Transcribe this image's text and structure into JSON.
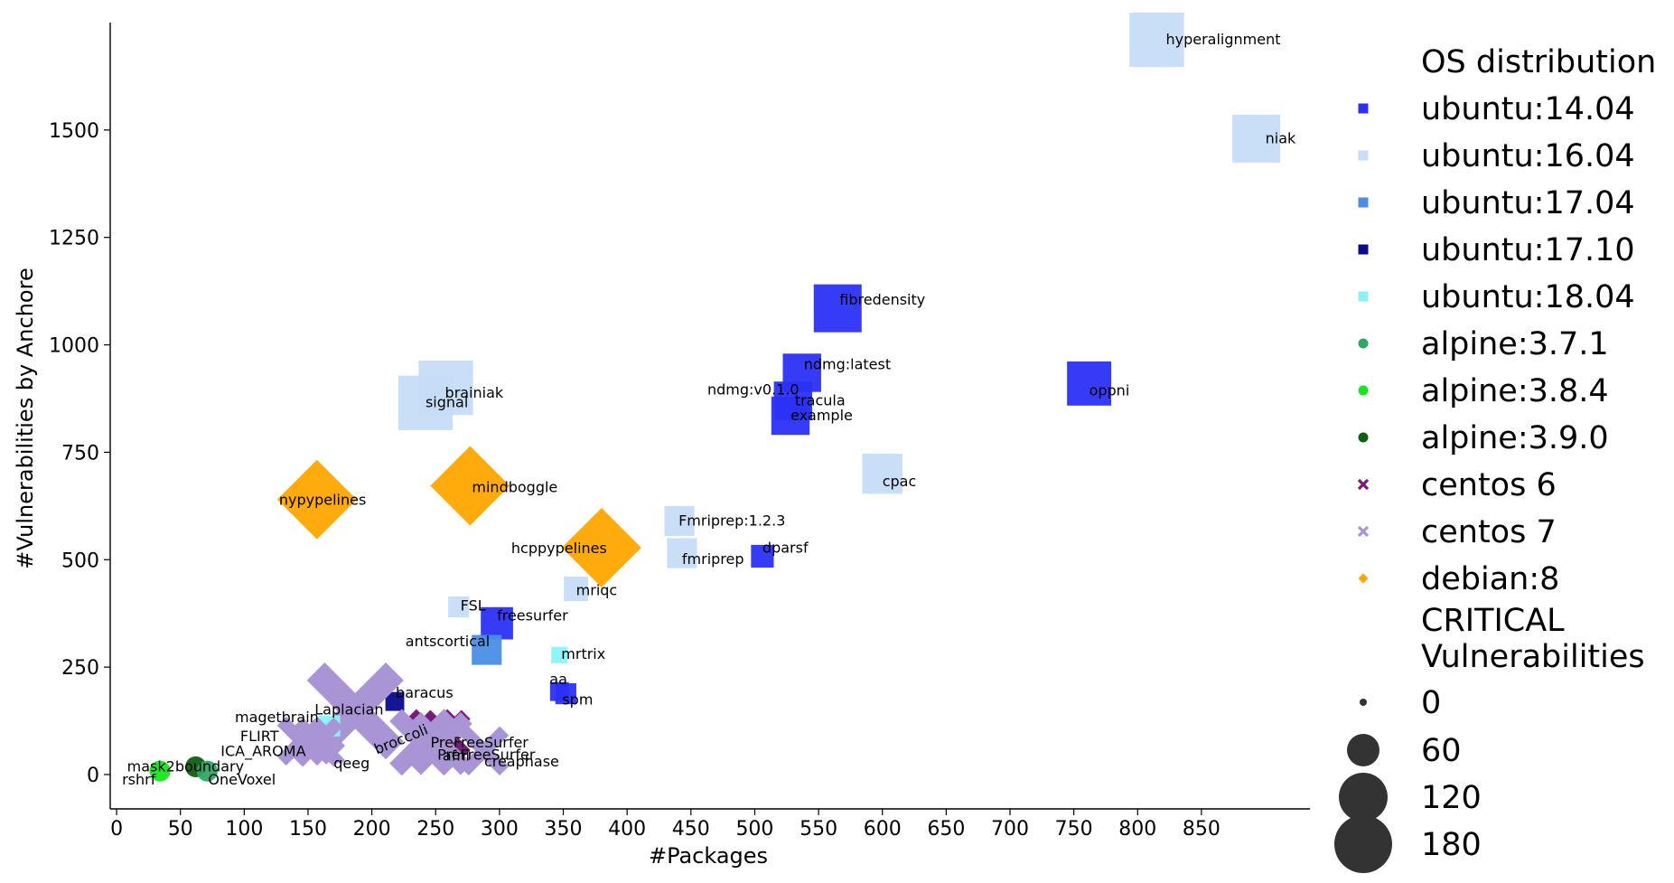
{
  "chart_data": {
    "type": "scatter",
    "xlabel": "#Packages",
    "ylabel": "#Vulnerabilities by Anchore",
    "xlim": [
      -5,
      935
    ],
    "ylim": [
      -80,
      1750
    ],
    "xticks": [
      0,
      50,
      100,
      150,
      200,
      250,
      300,
      350,
      400,
      450,
      500,
      550,
      600,
      650,
      700,
      750,
      800,
      850
    ],
    "yticks": [
      0,
      250,
      500,
      750,
      1000,
      1250,
      1500
    ],
    "legend": {
      "title": "OS distribution",
      "size_title": "CRITICAL Vulnerabilities",
      "size_entries": [
        "0",
        "60",
        "120",
        "180"
      ],
      "size_values": [
        0,
        60,
        120,
        180
      ],
      "placement": "right"
    },
    "series": [
      {
        "name": "ubuntu:14.04",
        "color": "#2b31f5",
        "marker": "square"
      },
      {
        "name": "ubuntu:16.04",
        "color": "#c6dcf7",
        "marker": "square"
      },
      {
        "name": "ubuntu:17.04",
        "color": "#4a8ee6",
        "marker": "square"
      },
      {
        "name": "ubuntu:17.10",
        "color": "#0a0a8c",
        "marker": "square"
      },
      {
        "name": "ubuntu:18.04",
        "color": "#8af3f8",
        "marker": "square"
      },
      {
        "name": "alpine:3.7.1",
        "color": "#2fa866",
        "marker": "circle"
      },
      {
        "name": "alpine:3.8.4",
        "color": "#18e61f",
        "marker": "circle"
      },
      {
        "name": "alpine:3.9.0",
        "color": "#0e5f12",
        "marker": "circle"
      },
      {
        "name": "centos 6",
        "color": "#7b1a78",
        "marker": "x"
      },
      {
        "name": "centos 7",
        "color": "#a995d6",
        "marker": "x"
      },
      {
        "name": "debian:8",
        "color": "#ffa500",
        "marker": "diamond"
      }
    ],
    "points": [
      {
        "label": "hyperalignment",
        "x": 815,
        "y": 1710,
        "critical": 40,
        "os": 1
      },
      {
        "label": "niak",
        "x": 893,
        "y": 1480,
        "critical": 30,
        "os": 1
      },
      {
        "label": "fibredensity",
        "x": 565,
        "y": 1085,
        "critical": 30,
        "os": 0
      },
      {
        "label": "ndmg:latest",
        "x": 537,
        "y": 935,
        "critical": 18,
        "os": 0
      },
      {
        "label": "ndmg:v0.1.0",
        "x": 528,
        "y": 895,
        "critical": 0,
        "os": 0
      },
      {
        "label": "tracula",
        "x": 530,
        "y": 870,
        "critical": 18,
        "os": 0
      },
      {
        "label": "example",
        "x": 528,
        "y": 835,
        "critical": 18,
        "os": 0
      },
      {
        "label": "oppni",
        "x": 762,
        "y": 910,
        "critical": 25,
        "os": 0
      },
      {
        "label": "brainiak",
        "x": 258,
        "y": 900,
        "critical": 40,
        "os": 1
      },
      {
        "label": "signal",
        "x": 242,
        "y": 865,
        "critical": 40,
        "os": 1
      },
      {
        "label": "cpac",
        "x": 600,
        "y": 700,
        "critical": 20,
        "os": 1
      },
      {
        "label": "nypypelines",
        "x": 157,
        "y": 640,
        "critical": 180,
        "os": 10
      },
      {
        "label": "mindboggle",
        "x": 277,
        "y": 672,
        "critical": 180,
        "os": 10
      },
      {
        "label": "hcppypelines",
        "x": 380,
        "y": 528,
        "critical": 80,
        "os": 10
      },
      {
        "label": "Fmriprep:1.2.3",
        "x": 441,
        "y": 590,
        "critical": 10,
        "os": 1
      },
      {
        "label": "fmriprep",
        "x": 443,
        "y": 515,
        "critical": 10,
        "os": 1
      },
      {
        "label": "dparsf",
        "x": 506,
        "y": 508,
        "critical": 5,
        "os": 0
      },
      {
        "label": "mriqc",
        "x": 360,
        "y": 432,
        "critical": 6,
        "os": 1
      },
      {
        "label": "FSL",
        "x": 268,
        "y": 390,
        "critical": 4,
        "os": 1
      },
      {
        "label": "freesurfer",
        "x": 298,
        "y": 352,
        "critical": 12,
        "os": 0
      },
      {
        "label": "antscortical",
        "x": 290,
        "y": 290,
        "critical": 10,
        "os": 2
      },
      {
        "label": "mrtrix",
        "x": 347,
        "y": 278,
        "critical": 2,
        "os": 4
      },
      {
        "label": "aa",
        "x": 347,
        "y": 193,
        "critical": 3,
        "os": 0
      },
      {
        "label": "spm",
        "x": 352,
        "y": 188,
        "critical": 4,
        "os": 0
      },
      {
        "label": "baracus",
        "x": 218,
        "y": 170,
        "critical": 3,
        "os": 3
      },
      {
        "label": "Laplacian",
        "x": 187,
        "y": 148,
        "critical": 90,
        "os": 9
      },
      {
        "label": "magetbrain",
        "x": 167,
        "y": 113,
        "critical": 4,
        "os": 4
      },
      {
        "label": "broccoli",
        "x": 247,
        "y": 95,
        "critical": 20,
        "os": 8
      },
      {
        "label": "PreFreeSurfer",
        "x": 258,
        "y": 93,
        "critical": 20,
        "os": 8
      },
      {
        "label": "FLIRT",
        "x": 145,
        "y": 78,
        "critical": 20,
        "os": 9
      },
      {
        "label": "ICA_AROMA",
        "x": 158,
        "y": 75,
        "critical": 20,
        "os": 9
      },
      {
        "label": "PreFreeSurfer",
        "x": 240,
        "y": 75,
        "critical": 40,
        "os": 9
      },
      {
        "label": "afni",
        "x": 254,
        "y": 72,
        "critical": 35,
        "os": 9
      },
      {
        "label": "creaphase",
        "x": 288,
        "y": 55,
        "critical": 20,
        "os": 9
      },
      {
        "label": "qeeg",
        "x": 170,
        "y": 50,
        "critical": 3,
        "os": 9
      },
      {
        "label": "mask2boundary",
        "x": 62,
        "y": 18,
        "critical": 4,
        "os": 7
      },
      {
        "label": "OneVoxel",
        "x": 71,
        "y": 8,
        "critical": 4,
        "os": 5
      },
      {
        "label": "rshrf",
        "x": 34,
        "y": 8,
        "critical": 4,
        "os": 6
      }
    ]
  },
  "label_layout": [
    {
      "dx": 10,
      "dy": 5
    },
    {
      "dx": 10,
      "dy": 5
    },
    {
      "dx": 2,
      "dy": -4
    },
    {
      "dx": 2,
      "dy": -4
    },
    {
      "dx": -92,
      "dy": 5
    },
    {
      "dx": 2,
      "dy": 5
    },
    {
      "dx": 0,
      "dy": 5
    },
    {
      "dx": 0,
      "dy": 13
    },
    {
      "dx": -1,
      "dy": 11
    },
    {
      "dx": 0,
      "dy": 5
    },
    {
      "dx": 0,
      "dy": 14
    },
    {
      "dx": -42,
      "dy": 6
    },
    {
      "dx": 2,
      "dy": 7
    },
    {
      "dx": -100,
      "dy": 6
    },
    {
      "dx": -1,
      "dy": 5
    },
    {
      "dx": 0,
      "dy": 12
    },
    {
      "dx": 0,
      "dy": -4
    },
    {
      "dx": 0,
      "dy": 7
    },
    {
      "dx": 2,
      "dy": 4
    },
    {
      "dx": 0,
      "dy": -3
    },
    {
      "dx": -90,
      "dy": -4
    },
    {
      "dx": 2,
      "dy": 4
    },
    {
      "dx": -11,
      "dy": -8
    },
    {
      "dx": -4,
      "dy": 12
    },
    {
      "dx": 1,
      "dy": -4
    },
    {
      "dx": -45,
      "dy": 4
    },
    {
      "dx": -105,
      "dy": -4
    },
    {
      "dx": -61,
      "dy": 23
    },
    {
      "dx": -17,
      "dy": 14
    },
    {
      "dx": -68,
      "dy": 0
    },
    {
      "dx": -108,
      "dy": 15
    },
    {
      "dx": 16,
      "dy": 19
    },
    {
      "dx": 2,
      "dy": 19
    },
    {
      "dx": 0,
      "dy": 17
    },
    {
      "dx": 0,
      "dy": 17
    },
    {
      "dx": -76,
      "dy": 5
    },
    {
      "dx": 1,
      "dy": 15
    },
    {
      "dx": -42,
      "dy": 15
    }
  ]
}
